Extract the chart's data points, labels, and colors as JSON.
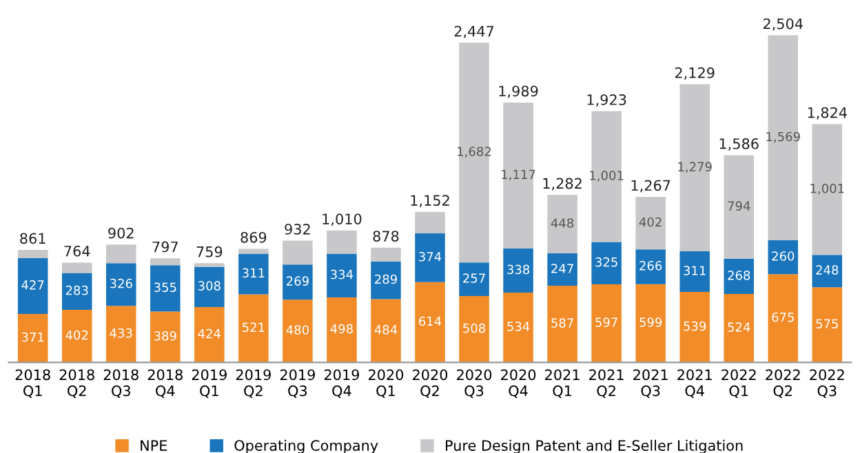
{
  "chart_data": {
    "type": "bar",
    "stacked": true,
    "legend": "bottom",
    "grid": false,
    "categories": [
      "2018\nQ1",
      "2018\nQ2",
      "2018\nQ3",
      "2018\nQ4",
      "2019\nQ1",
      "2019\nQ2",
      "2019\nQ3",
      "2019\nQ4",
      "2020\nQ1",
      "2020\nQ2",
      "2020\nQ3",
      "2020\nQ4",
      "2021\nQ1",
      "2021\nQ2",
      "2021\nQ3",
      "2021\nQ4",
      "2022\nQ1",
      "2022\nQ2",
      "2022\nQ3"
    ],
    "series": [
      {
        "name": "NPE",
        "color": "#f28c28",
        "values": [
          371,
          402,
          433,
          389,
          424,
          521,
          480,
          498,
          484,
          614,
          508,
          534,
          587,
          597,
          599,
          539,
          524,
          675,
          575
        ],
        "value_labels": [
          "371",
          "402",
          "433",
          "389",
          "424",
          "521",
          "480",
          "498",
          "484",
          "614",
          "508",
          "534",
          "587",
          "597",
          "599",
          "539",
          "524",
          "675",
          "575"
        ]
      },
      {
        "name": "Operating Company",
        "color": "#1a75bc",
        "values": [
          427,
          283,
          326,
          355,
          308,
          311,
          269,
          334,
          289,
          374,
          257,
          338,
          247,
          325,
          266,
          311,
          268,
          260,
          248
        ],
        "value_labels": [
          "427",
          "283",
          "326",
          "355",
          "308",
          "311",
          "269",
          "334",
          "289",
          "374",
          "257",
          "338",
          "247",
          "325",
          "266",
          "311",
          "268",
          "260",
          "248"
        ]
      },
      {
        "name": "Pure Design Patent and E-Seller Litigation",
        "color": "#c8c8ca",
        "values": [
          63,
          79,
          143,
          53,
          27,
          37,
          183,
          178,
          105,
          164,
          1682,
          1117,
          448,
          1001,
          402,
          1279,
          794,
          1569,
          1001
        ],
        "value_labels": [
          null,
          null,
          null,
          null,
          null,
          null,
          null,
          null,
          null,
          null,
          "1,682",
          "1,117",
          "448",
          "1,001",
          "402",
          "1,279",
          "794",
          "1,569",
          "1,001"
        ]
      }
    ],
    "totals": [
      "861",
      "764",
      "902",
      "797",
      "759",
      "869",
      "932",
      "1,010",
      "878",
      "1,152",
      "2,447",
      "1,989",
      "1,282",
      "1,923",
      "1,267",
      "2,129",
      "1,586",
      "2,504",
      "1,824"
    ]
  }
}
